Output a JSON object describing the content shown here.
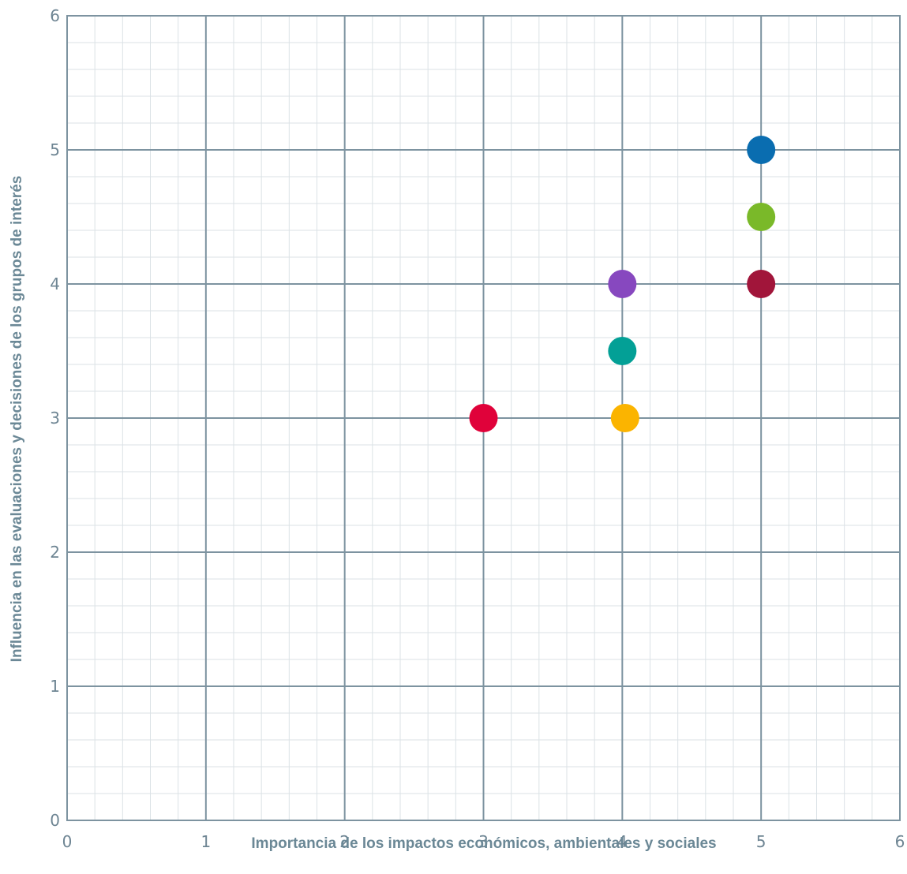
{
  "chart_data": {
    "type": "scatter",
    "title": "",
    "xlabel": "Importancia de los impactos económicos, ambientales y sociales",
    "ylabel": "Influencia en las evaluaciones y decisiones de los grupos de interés",
    "xlim": [
      0,
      6
    ],
    "ylim": [
      0,
      6
    ],
    "x_ticks": [
      "0",
      "1",
      "2",
      "3",
      "4",
      "5",
      "6"
    ],
    "y_ticks": [
      "0",
      "1",
      "2",
      "3",
      "4",
      "5",
      "6"
    ],
    "grid": true,
    "minor_grid": true,
    "legend": "none",
    "points": [
      {
        "x": 5.0,
        "y": 5.0,
        "color": "#0a6db0"
      },
      {
        "x": 5.0,
        "y": 4.5,
        "color": "#7ab929"
      },
      {
        "x": 4.0,
        "y": 4.0,
        "color": "#8748bf"
      },
      {
        "x": 5.0,
        "y": 4.0,
        "color": "#a1153a"
      },
      {
        "x": 4.0,
        "y": 3.5,
        "color": "#03a096"
      },
      {
        "x": 3.0,
        "y": 3.0,
        "color": "#e0023a"
      },
      {
        "x": 4.02,
        "y": 3.0,
        "color": "#fbb400"
      }
    ]
  },
  "colors": {
    "major_grid": "#7d93a0",
    "minor_grid": "#dbe2e6",
    "frame": "#7d93a0"
  }
}
